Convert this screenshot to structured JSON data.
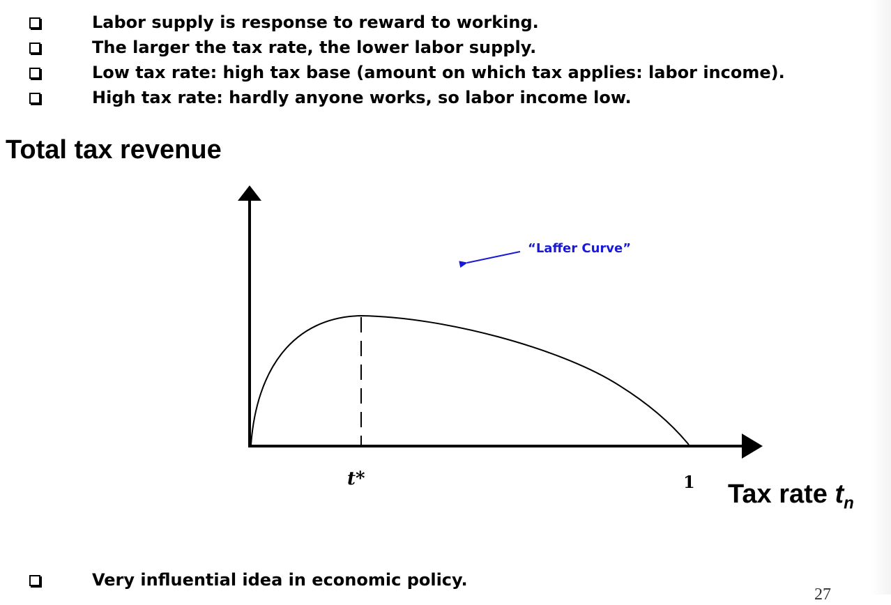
{
  "bullets": [
    {
      "icon": "checkbox-icon",
      "text": "Labor supply is response to reward to working."
    },
    {
      "icon": "checkbox-icon",
      "text": "The larger the tax rate, the lower labor supply."
    },
    {
      "icon": "checkbox-icon",
      "text": "Low tax rate: high tax base (amount on which tax applies: labor income)."
    },
    {
      "icon": "checkbox-icon",
      "text": "High tax rate: hardly anyone works, so labor income low."
    }
  ],
  "diagram": {
    "y_axis_title": "Total tax revenue",
    "x_axis_title_base": "Tax rate ",
    "x_axis_title_var": "t",
    "x_axis_title_sub": "n",
    "curve_label": "“Laffer Curve”",
    "peak_label": "t*",
    "end_label": "1",
    "colors": {
      "line": "#000000",
      "annotation": "#1a1ad6"
    }
  },
  "bottom_bullet": {
    "icon": "checkbox-icon",
    "text": "Very influential idea in economic policy."
  },
  "page_number": "27"
}
